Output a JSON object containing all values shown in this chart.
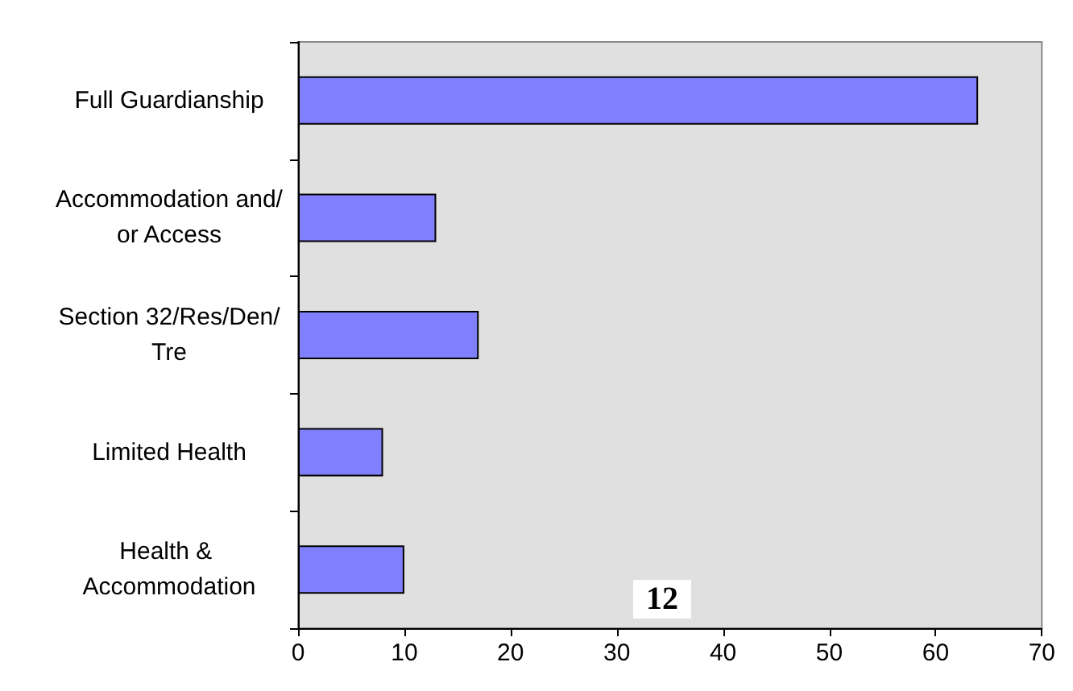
{
  "chart_data": {
    "type": "bar",
    "orientation": "horizontal",
    "categories": [
      "Full Guardianship",
      "Accommodation and/or Access",
      "Section 32/Res/Den/Tre",
      "Limited Health",
      "Health & Accommodation"
    ],
    "values": [
      64,
      13,
      17,
      8,
      10
    ],
    "color": "#8080ff",
    "xlim": [
      0,
      70
    ],
    "xticks": [
      0,
      10,
      20,
      30,
      40,
      50,
      60,
      70
    ],
    "grid": false,
    "annotations": [
      "12"
    ]
  }
}
